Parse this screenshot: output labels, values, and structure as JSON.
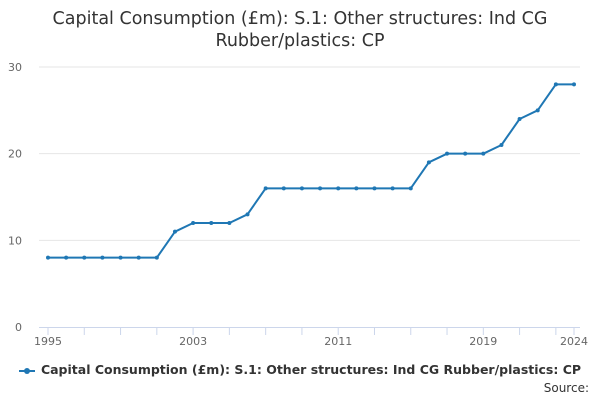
{
  "chart_data": {
    "type": "line",
    "title_line1": "Capital Consumption (£m): S.1: Other structures: Ind CG",
    "title_line2": "Rubber/plastics: CP",
    "xlabel": "",
    "ylabel": "",
    "x": [
      1995,
      1996,
      1997,
      1998,
      1999,
      2000,
      2001,
      2002,
      2003,
      2004,
      2005,
      2006,
      2007,
      2008,
      2009,
      2010,
      2011,
      2012,
      2013,
      2014,
      2015,
      2016,
      2017,
      2018,
      2019,
      2020,
      2021,
      2022,
      2023,
      2024
    ],
    "xlim": [
      1995,
      2024
    ],
    "x_ticks": [
      "1995",
      "2003",
      "2011",
      "2019",
      "2024"
    ],
    "ylim": [
      0,
      30
    ],
    "y_ticks": [
      "0",
      "10",
      "20",
      "30"
    ],
    "grid": true,
    "legend_position": "bottom",
    "series": [
      {
        "name": "Capital Consumption (£m): S.1: Other structures: Ind CG Rubber/plastics: CP",
        "color": "#1f77b4",
        "values": [
          8,
          8,
          8,
          8,
          8,
          8,
          8,
          11,
          12,
          12,
          12,
          13,
          16,
          16,
          16,
          16,
          16,
          16,
          16,
          16,
          16,
          19,
          20,
          20,
          20,
          21,
          24,
          25,
          28,
          28
        ]
      }
    ]
  },
  "footer": {
    "source_label": "Source:"
  }
}
